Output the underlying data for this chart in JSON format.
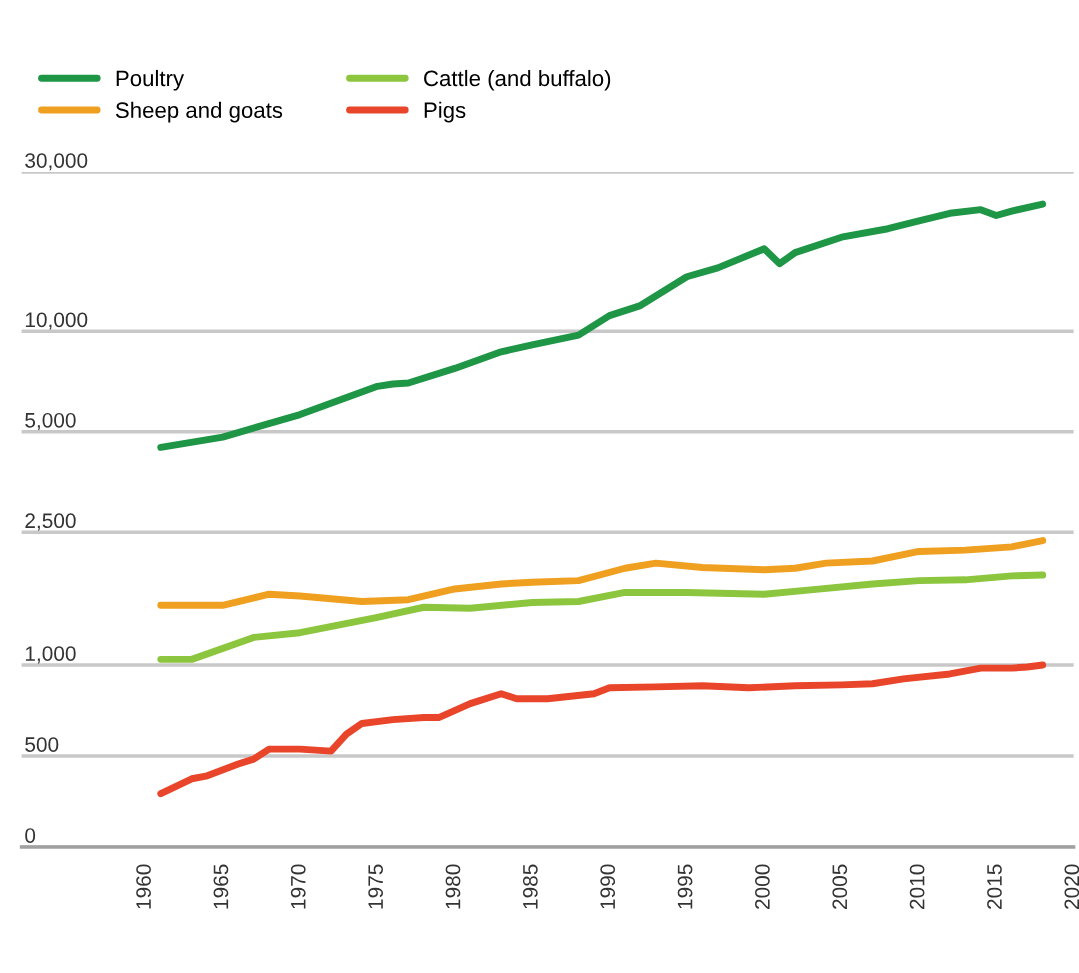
{
  "chart_data": [
    {
      "type": "line",
      "series": [
        {
          "name": "Poultry",
          "color": "#1e9646",
          "x": [
            1961,
            1965,
            1970,
            1975,
            1976,
            1977,
            1980,
            1983,
            1985,
            1988,
            1990,
            1992,
            1995,
            1997,
            2000,
            2001,
            2002,
            2005,
            2008,
            2010,
            2012,
            2014,
            2015,
            2016,
            2018
          ],
          "values": [
            4490,
            4820,
            5630,
            6840,
            6950,
            7000,
            7740,
            8680,
            9100,
            9740,
            11140,
            11940,
            14570,
            15490,
            17660,
            15940,
            17200,
            19140,
            20290,
            21430,
            22570,
            23140,
            22230,
            22910,
            24060
          ]
        },
        {
          "name": "Cattle (and buffalo)",
          "color": "#8cc63f",
          "x": [
            1961,
            1963,
            1967,
            1970,
            1975,
            1978,
            1981,
            1985,
            1988,
            1991,
            1995,
            2000,
            2003,
            2007,
            2010,
            2013,
            2016,
            2018
          ],
          "values": [
            1040,
            1040,
            1210,
            1250,
            1390,
            1490,
            1480,
            1540,
            1550,
            1650,
            1650,
            1630,
            1680,
            1750,
            1790,
            1800,
            1850,
            1860
          ]
        },
        {
          "name": "Sheep and goats",
          "color": "#f0a020",
          "x": [
            1961,
            1965,
            1968,
            1970,
            1974,
            1977,
            1980,
            1983,
            1985,
            1988,
            1991,
            1993,
            1996,
            2000,
            2002,
            2004,
            2007,
            2010,
            2013,
            2016,
            2018
          ],
          "values": [
            1510,
            1510,
            1630,
            1610,
            1550,
            1570,
            1690,
            1750,
            1770,
            1790,
            1950,
            2020,
            1960,
            1930,
            1950,
            2020,
            2050,
            2190,
            2210,
            2260,
            2360
          ]
        }
      ],
      "xlim": [
        1952,
        2020
      ],
      "xticks": [
        1960,
        1965,
        1970,
        1975,
        1980,
        1985,
        1990,
        1995,
        2000,
        2005,
        2010,
        2015,
        2020
      ],
      "ylim": [
        1000,
        30000
      ],
      "yticks": [
        {
          "value": 1000,
          "label": "1,000"
        },
        {
          "value": 2500,
          "label": "2,500"
        },
        {
          "value": 5000,
          "label": "5,000"
        },
        {
          "value": 10000,
          "label": "10,000"
        },
        {
          "value": 30000,
          "label": "30,000"
        }
      ],
      "log": "y",
      "tick_labels": "y",
      "grid": "y",
      "legend": "top left",
      "marker": "none",
      "line_style": "solid"
    },
    {
      "type": "line",
      "series": [
        {
          "name": "Pigs",
          "color": "#e8452a",
          "x": [
            1961,
            1963,
            1964,
            1966,
            1967,
            1968,
            1970,
            1972,
            1973,
            1974,
            1976,
            1978,
            1979,
            1981,
            1983,
            1984,
            1986,
            1989,
            1990,
            1993,
            1996,
            1999,
            2002,
            2005,
            2007,
            2009,
            2012,
            2014,
            2016,
            2017,
            2018
          ],
          "values": [
            293,
            375,
            391,
            456,
            483,
            538,
            538,
            527,
            620,
            679,
            700,
            712,
            712,
            788,
            842,
            815,
            815,
            842,
            875,
            880,
            886,
            875,
            886,
            891,
            897,
            924,
            951,
            983,
            983,
            989,
            1000
          ]
        }
      ],
      "xlim": [
        1952,
        2020
      ],
      "xticks": [
        1960,
        1965,
        1970,
        1975,
        1980,
        1985,
        1990,
        1995,
        2000,
        2005,
        2010,
        2015,
        2020
      ],
      "ylim": [
        0,
        1000
      ],
      "yticks": [
        0,
        500,
        {
          "value": 1000,
          "label": null
        }
      ],
      "grid": "y",
      "legend": "top left",
      "marker": "none",
      "line_style": "solid"
    }
  ]
}
